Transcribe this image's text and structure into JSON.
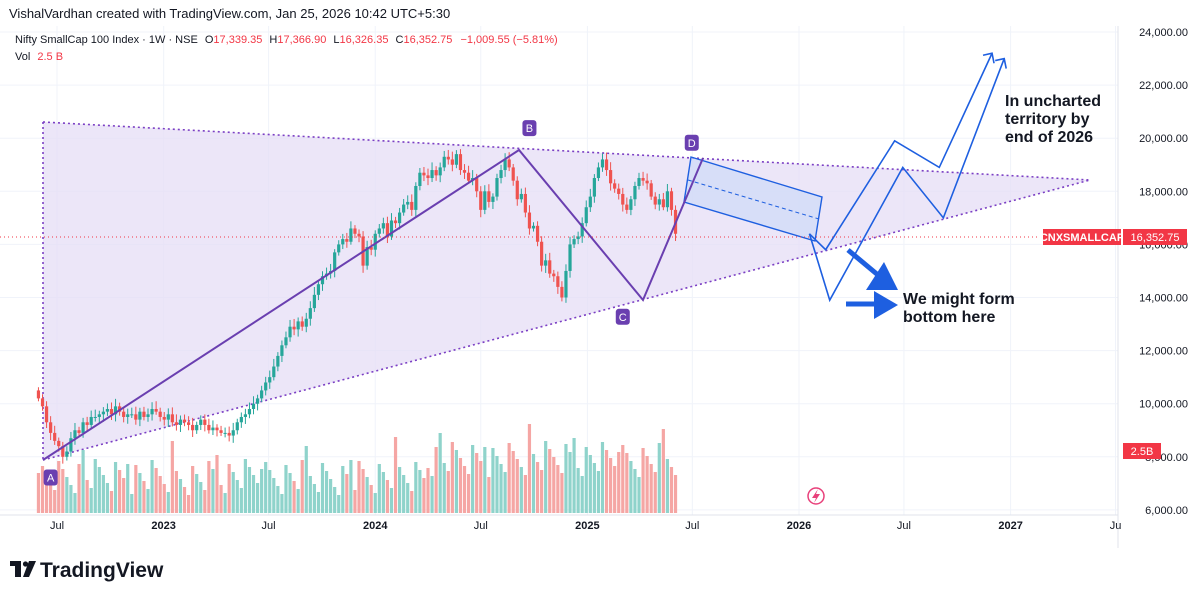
{
  "header": {
    "attribution": "VishalVardhan created with TradingView.com, Jan 25, 2026 10:42 UTC+5:30"
  },
  "legend": {
    "symbol": "Nifty SmallCap 100 Index · 1W · NSE",
    "o_label": "O",
    "o_value": "17,339.35",
    "h_label": "H",
    "h_value": "17,366.90",
    "l_label": "L",
    "l_value": "16,326.35",
    "c_label": "C",
    "c_value": "16,352.75",
    "change": "−1,009.55 (−5.81%)",
    "vol_label": "Vol",
    "vol_value": "2.5 B"
  },
  "price_badge": {
    "symbol": "CNXSMALLCAP",
    "price": "16,352.75"
  },
  "vol_badge": "2.5B",
  "annotations": {
    "bottom_text": [
      "We might form",
      "bottom here"
    ],
    "territory_text": [
      "In uncharted",
      "territory by",
      "end of 2026"
    ]
  },
  "points": [
    "A",
    "B",
    "C",
    "D"
  ],
  "colors": {
    "up": "#26a69a",
    "down": "#ef5350",
    "triangle_fill": "#e6ddf6",
    "triangle_line": "#7b3fc4",
    "wave": "#6a3fb0",
    "arrow": "#1e5fe0",
    "channel_fill": "#c9d8f8",
    "badge_red": "#f23645"
  },
  "footer": {
    "brand": "TradingView"
  },
  "chart_data": {
    "type": "candlestick",
    "title": "Nifty SmallCap 100 Index · 1W · NSE",
    "x_ticks": [
      "Jul",
      "2023",
      "Jul",
      "2024",
      "Jul",
      "2025",
      "Jul",
      "2026",
      "Jul",
      "2027",
      "Ju"
    ],
    "y_ticks": [
      "24,000.00",
      "22,000.00",
      "20,000.00",
      "18,000.00",
      "16,000.00",
      "14,000.00",
      "12,000.00",
      "10,000.00",
      "8,000.00",
      "6,000.00"
    ],
    "y_tick_values": [
      24000,
      22000,
      20000,
      18000,
      16000,
      14000,
      12000,
      10000,
      8000,
      6000
    ],
    "last_price": 16352.75,
    "wave_points": [
      {
        "label": "A",
        "date": "2022-06-20",
        "price": 7900
      },
      {
        "label": "B",
        "date": "2024-09-23",
        "price": 19700
      },
      {
        "label": "C",
        "date": "2025-03-03",
        "price": 13800
      },
      {
        "label": "D",
        "date": "2025-06-30",
        "price": 19300
      }
    ],
    "closes": [
      10200,
      9900,
      9300,
      8900,
      8600,
      8400,
      8000,
      8200,
      8700,
      9000,
      8900,
      9300,
      9200,
      9500,
      9500,
      9600,
      9700,
      9800,
      9600,
      9900,
      9700,
      9500,
      9600,
      9600,
      9400,
      9700,
      9500,
      9600,
      9800,
      9700,
      9500,
      9400,
      9600,
      9300,
      9200,
      9400,
      9300,
      9200,
      9000,
      9200,
      9400,
      9200,
      9000,
      9100,
      9000,
      8900,
      8900,
      8800,
      9000,
      9300,
      9500,
      9600,
      9800,
      10000,
      10200,
      10500,
      10800,
      11000,
      11400,
      11800,
      12200,
      12500,
      12900,
      12800,
      13100,
      12900,
      13200,
      13600,
      14100,
      14500,
      14800,
      14900,
      15000,
      15700,
      16000,
      16200,
      16100,
      16600,
      16400,
      16300,
      15200,
      15900,
      15800,
      16400,
      16600,
      16800,
      16300,
      16900,
      16800,
      17200,
      17500,
      17600,
      17300,
      18200,
      18700,
      18600,
      18500,
      18800,
      18600,
      18900,
      19300,
      19200,
      19000,
      19400,
      18800,
      18700,
      18400,
      18500,
      18000,
      17300,
      18000,
      17600,
      17800,
      18500,
      18800,
      19200,
      18900,
      18400,
      17700,
      17900,
      17200,
      16600,
      16700,
      16100,
      15200,
      15400,
      14900,
      14800,
      14400,
      14000,
      15000,
      16000,
      16200,
      16300,
      16800,
      17400,
      17800,
      18500,
      18900,
      19200,
      18800,
      18300,
      18100,
      17900,
      17500,
      17300,
      17700,
      18200,
      18500,
      18400,
      18300,
      17800,
      17500,
      17700,
      17400,
      18000,
      17300,
      16400
    ],
    "volume": {
      "last_value": "2.5B"
    },
    "projection_path_1": [
      {
        "date": "2026-01-19",
        "price": 16400
      },
      {
        "date": "2026-02-23",
        "price": 13900
      },
      {
        "date": "2026-06-29",
        "price": 18900
      },
      {
        "date": "2026-09-07",
        "price": 17000
      },
      {
        "date": "2026-12-21",
        "price": 23000
      }
    ],
    "projection_path_2": [
      {
        "date": "2026-01-19",
        "price": 16400
      },
      {
        "date": "2026-02-16",
        "price": 15800
      },
      {
        "date": "2026-06-15",
        "price": 19900
      },
      {
        "date": "2026-08-31",
        "price": 18900
      },
      {
        "date": "2026-11-30",
        "price": 23200
      }
    ]
  }
}
